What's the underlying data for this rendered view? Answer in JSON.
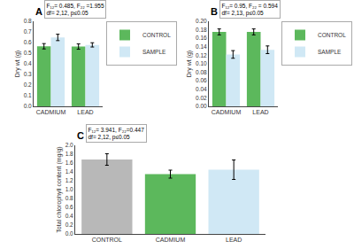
{
  "chart_data": [
    {
      "type": "bar",
      "title": "A",
      "ylabel": "Dry wt (g)",
      "categories": [
        "CADMIUM",
        "LEAD"
      ],
      "series": [
        {
          "name": "CONTROL",
          "color": "#5cb85c",
          "values": [
            0.565,
            0.562
          ],
          "errors": [
            0.025,
            0.025
          ]
        },
        {
          "name": "SAMPLE",
          "color": "#d0e8f5",
          "values": [
            0.648,
            0.578
          ],
          "errors": [
            0.03,
            0.02
          ]
        }
      ],
      "ylim": [
        0,
        0.8
      ],
      "yticks": [
        {
          "value": 0,
          "label": "0.0"
        },
        0.1,
        0.2,
        0.3,
        0.4,
        0.5,
        0.6,
        0.7,
        0.8
      ],
      "annotation": "F₁₂= 0.485, F₂₂ =1.955\ndf= 2,12, p≤0.05",
      "legend": "upper right",
      "grid": false
    },
    {
      "type": "bar",
      "title": "B",
      "ylabel": "Dry wt (g)",
      "categories": [
        "CADMIUM",
        "LEAD"
      ],
      "series": [
        {
          "name": "CONTROL",
          "color": "#5cb85c",
          "values": [
            0.175,
            0.175
          ],
          "errors": [
            0.007,
            0.007
          ]
        },
        {
          "name": "SAMPLE",
          "color": "#d0e8f5",
          "values": [
            0.122,
            0.133
          ],
          "errors": [
            0.009,
            0.009
          ]
        }
      ],
      "ylim": [
        0,
        0.2
      ],
      "yticks": [
        {
          "value": 0,
          "label": "0.00"
        },
        0.02,
        0.04,
        0.06,
        0.08,
        {
          "value": 0.1,
          "label": "0.10"
        },
        0.12,
        0.14,
        0.16,
        0.18,
        {
          "value": 0.2,
          "label": "0.20"
        }
      ],
      "annotation": "F₁₂= 0.95, F₂₂ = 0.594\ndf= 2,13, p≤0.05",
      "legend": "upper right",
      "grid": false
    },
    {
      "type": "bar",
      "title": "C",
      "ylabel": "Total chlorophyll content (mg/g)",
      "categories": [
        "CONTROL",
        "CADMIUM",
        "LEAD"
      ],
      "values": [
        1.68,
        1.35,
        1.45
      ],
      "errors": [
        0.13,
        0.09,
        0.22
      ],
      "colors": [
        "#b8b8b8",
        "#5cb85c",
        "#d0e8f5"
      ],
      "ylim": [
        0,
        2.0
      ],
      "yticks": [
        {
          "value": 0,
          "label": "0.0"
        },
        0.2,
        0.4,
        0.6,
        0.8,
        {
          "value": 1.0,
          "label": "1.0"
        },
        1.2,
        1.4,
        1.6,
        1.8,
        {
          "value": 2.0,
          "label": "2.0"
        }
      ],
      "annotation": "F₁₂= 3.941, F₂₂=0.447\ndf= 2,12, p≤0.05",
      "grid": false
    }
  ]
}
